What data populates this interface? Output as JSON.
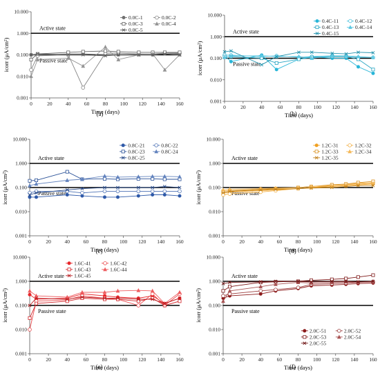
{
  "chart_data": [
    {
      "type": "line",
      "panel": "(a)",
      "xlabel": "Time (days)",
      "ylabel": "icorr (μA/cm²)",
      "xlim": [
        0,
        160
      ],
      "ylim": [
        0.001,
        10
      ],
      "yscale": "log",
      "xticks": [
        "0",
        "20",
        "40",
        "60",
        "80",
        "100",
        "120",
        "140",
        "160"
      ],
      "yticks": [
        "0.001",
        "0.010",
        "0.100",
        "1.000",
        "10.000"
      ],
      "annotations": [
        "Active state",
        "Passive state"
      ],
      "thresholds": [
        1.0,
        0.1
      ],
      "color": "#707070",
      "legend_position": "top-right",
      "x": [
        0,
        7,
        40,
        56,
        80,
        94,
        116,
        131,
        144,
        160
      ],
      "series": [
        {
          "name": "0.0C-1",
          "marker": "dot",
          "values": [
            0.1,
            0.1,
            0.11,
            0.11,
            0.1,
            0.1,
            0.11,
            0.1,
            0.12,
            0.11
          ]
        },
        {
          "name": "0.0C-2",
          "marker": "circle",
          "values": [
            0.02,
            0.09,
            0.1,
            0.003,
            0.12,
            0.12,
            0.11,
            0.11,
            0.12,
            0.12
          ]
        },
        {
          "name": "0.0C-3",
          "marker": "square",
          "values": [
            0.06,
            0.11,
            0.13,
            0.14,
            0.15,
            0.14,
            0.13,
            0.13,
            0.13,
            0.13
          ]
        },
        {
          "name": "0.0C-4",
          "marker": "triangle",
          "values": [
            0.01,
            0.06,
            0.07,
            0.03,
            0.23,
            0.06,
            0.1,
            0.11,
            0.02,
            0.1
          ]
        },
        {
          "name": "0.0C-5",
          "marker": "x",
          "values": [
            0.1,
            0.11,
            0.1,
            0.1,
            0.09,
            0.1,
            0.1,
            0.1,
            0.11,
            0.1
          ]
        }
      ]
    },
    {
      "type": "line",
      "panel": "(b)",
      "xlabel": "Time (days)",
      "ylabel": "icorr (μA/cm²)",
      "xlim": [
        0,
        160
      ],
      "ylim": [
        0.001,
        10
      ],
      "yscale": "log",
      "xticks": [
        "0",
        "20",
        "40",
        "60",
        "80",
        "100",
        "120",
        "140",
        "160"
      ],
      "yticks": [
        "0.001",
        "0.010",
        "0.100",
        "1.000",
        "10.000"
      ],
      "annotations": [
        "Active state",
        "Passive state"
      ],
      "thresholds": [
        1.0,
        0.1
      ],
      "color": "#29b6d8",
      "legend_position": "top-right",
      "x": [
        0,
        7,
        40,
        56,
        80,
        94,
        116,
        131,
        144,
        160
      ],
      "series": [
        {
          "name": "0.4C-11",
          "marker": "dot",
          "values": [
            0.13,
            0.07,
            0.14,
            0.03,
            0.09,
            0.12,
            0.1,
            0.1,
            0.04,
            0.02
          ]
        },
        {
          "name": "0.4C-12",
          "marker": "circle",
          "values": [
            0.14,
            0.14,
            0.12,
            0.13,
            0.11,
            0.12,
            0.13,
            0.12,
            0.11,
            0.11
          ]
        },
        {
          "name": "0.4C-13",
          "marker": "square",
          "values": [
            0.12,
            0.12,
            0.1,
            0.06,
            0.09,
            0.11,
            0.12,
            0.12,
            0.09,
            0.03
          ]
        },
        {
          "name": "0.4C-14",
          "marker": "triangle",
          "values": [
            0.11,
            0.13,
            0.13,
            0.12,
            0.12,
            0.1,
            0.13,
            0.13,
            0.12,
            0.11
          ]
        },
        {
          "name": "0.4C-15",
          "marker": "x",
          "values": [
            0.2,
            0.22,
            0.05,
            0.12,
            0.19,
            0.19,
            0.17,
            0.16,
            0.19,
            0.18
          ]
        }
      ]
    },
    {
      "type": "line",
      "panel": "(c)",
      "xlabel": "Time (days)",
      "ylabel": "icorr (μA/cm²)",
      "xlim": [
        0,
        160
      ],
      "ylim": [
        0.001,
        10
      ],
      "yscale": "log",
      "xticks": [
        "0",
        "20",
        "40",
        "60",
        "80",
        "100",
        "120",
        "140",
        "160"
      ],
      "yticks": [
        "0.001",
        "0.010",
        "0.100",
        "1.000",
        "10.000"
      ],
      "annotations": [
        "Active state",
        "Passive state"
      ],
      "thresholds": [
        1.0,
        0.1
      ],
      "color": "#2e59a8",
      "legend_position": "top-right",
      "x": [
        0,
        7,
        40,
        56,
        80,
        94,
        116,
        131,
        144,
        160
      ],
      "series": [
        {
          "name": "0.8C-21",
          "marker": "dot",
          "values": [
            0.04,
            0.04,
            0.05,
            0.045,
            0.04,
            0.04,
            0.045,
            0.05,
            0.05,
            0.045
          ]
        },
        {
          "name": "0.8C-22",
          "marker": "circle",
          "values": [
            0.06,
            0.07,
            0.07,
            0.06,
            0.07,
            0.07,
            0.07,
            0.07,
            0.07,
            0.07
          ]
        },
        {
          "name": "0.8C-23",
          "marker": "square",
          "values": [
            0.19,
            0.2,
            0.45,
            0.22,
            0.23,
            0.22,
            0.23,
            0.23,
            0.22,
            0.22
          ]
        },
        {
          "name": "0.8C-24",
          "marker": "triangle",
          "values": [
            0.12,
            0.14,
            0.2,
            0.22,
            0.3,
            0.27,
            0.28,
            0.29,
            0.29,
            0.28
          ]
        },
        {
          "name": "0.8C-25",
          "marker": "x",
          "values": [
            0.05,
            0.06,
            0.08,
            0.09,
            0.1,
            0.1,
            0.1,
            0.1,
            0.11,
            0.1
          ]
        }
      ]
    },
    {
      "type": "line",
      "panel": "(d)",
      "xlabel": "Time (days)",
      "ylabel": "icorr (μA/cm²)",
      "xlim": [
        0,
        160
      ],
      "ylim": [
        0.001,
        10
      ],
      "yscale": "log",
      "xticks": [
        "0",
        "20",
        "40",
        "60",
        "80",
        "100",
        "120",
        "140",
        "160"
      ],
      "yticks": [
        "0.001",
        "0.010",
        "0.100",
        "1.000",
        "10.000"
      ],
      "annotations": [
        "Active state",
        "Passive state"
      ],
      "thresholds": [
        1.0,
        0.1
      ],
      "color": "#f0a020",
      "legend_position": "top-right",
      "x": [
        0,
        7,
        40,
        56,
        80,
        94,
        116,
        131,
        144,
        160
      ],
      "series": [
        {
          "name": "1.2C-31",
          "marker": "dot",
          "values": [
            0.06,
            0.065,
            0.075,
            0.08,
            0.09,
            0.1,
            0.11,
            0.12,
            0.13,
            0.14
          ]
        },
        {
          "name": "1.2C-32",
          "marker": "circle",
          "values": [
            0.05,
            0.055,
            0.065,
            0.075,
            0.09,
            0.1,
            0.12,
            0.13,
            0.15,
            0.16
          ]
        },
        {
          "name": "1.2C-33",
          "marker": "square",
          "values": [
            0.07,
            0.075,
            0.085,
            0.09,
            0.1,
            0.11,
            0.13,
            0.14,
            0.16,
            0.18
          ]
        },
        {
          "name": "1.2C-34",
          "marker": "triangle",
          "values": [
            0.08,
            0.085,
            0.09,
            0.095,
            0.1,
            0.11,
            0.12,
            0.13,
            0.14,
            0.15
          ]
        },
        {
          "name": "1.2C-35",
          "marker": "x",
          "values": [
            0.06,
            0.07,
            0.08,
            0.085,
            0.09,
            0.095,
            0.1,
            0.11,
            0.12,
            0.12
          ]
        }
      ]
    },
    {
      "type": "line",
      "panel": "(e)",
      "xlabel": "Time (days)",
      "ylabel": "icorr (μA/cm²)",
      "xlim": [
        0,
        160
      ],
      "ylim": [
        0.001,
        10
      ],
      "yscale": "log",
      "xticks": [
        "0",
        "20",
        "40",
        "60",
        "80",
        "100",
        "120",
        "140",
        "160"
      ],
      "yticks": [
        "0.001",
        "0.010",
        "0.100",
        "1.000",
        "10.000"
      ],
      "annotations": [
        "Active state",
        "Passive state"
      ],
      "thresholds": [
        1.0,
        0.1
      ],
      "color": "#e8262a",
      "legend_position": "top-left",
      "x": [
        0,
        7,
        40,
        56,
        80,
        94,
        116,
        131,
        144,
        160
      ],
      "series": [
        {
          "name": "1.6C-41",
          "marker": "dot",
          "values": [
            0.28,
            0.18,
            0.2,
            0.3,
            0.25,
            0.22,
            0.2,
            0.25,
            0.12,
            0.2
          ]
        },
        {
          "name": "1.6C-42",
          "marker": "circle",
          "values": [
            0.01,
            0.15,
            0.17,
            0.25,
            0.2,
            0.18,
            0.1,
            0.3,
            0.1,
            0.3
          ]
        },
        {
          "name": "1.6C-43",
          "marker": "square",
          "values": [
            0.03,
            0.12,
            0.15,
            0.2,
            0.18,
            0.18,
            0.15,
            0.2,
            0.1,
            0.15
          ]
        },
        {
          "name": "1.6C-44",
          "marker": "triangle",
          "values": [
            0.4,
            0.25,
            0.22,
            0.35,
            0.35,
            0.4,
            0.42,
            0.4,
            0.12,
            0.35
          ]
        },
        {
          "name": "1.6C-45",
          "marker": "x",
          "values": [
            0.1,
            0.2,
            0.18,
            0.22,
            0.2,
            0.2,
            0.18,
            0.18,
            0.12,
            0.2
          ]
        }
      ]
    },
    {
      "type": "line",
      "panel": "(f)",
      "xlabel": "Time (days)",
      "ylabel": "icorr (μA/cm²)",
      "xlim": [
        0,
        160
      ],
      "ylim": [
        0.001,
        10
      ],
      "yscale": "log",
      "xticks": [
        "0",
        "20",
        "40",
        "60",
        "80",
        "100",
        "120",
        "140",
        "160"
      ],
      "yticks": [
        "0.001",
        "0.010",
        "0.100",
        "1.000",
        "10.000"
      ],
      "annotations": [
        "Active state",
        "Passive state"
      ],
      "thresholds": [
        1.0,
        0.1
      ],
      "color": "#8b1a1a",
      "legend_position": "bottom-right",
      "x": [
        0,
        7,
        40,
        56,
        80,
        94,
        116,
        131,
        144,
        160
      ],
      "series": [
        {
          "name": "2.0C-51",
          "marker": "dot",
          "values": [
            0.2,
            0.25,
            0.3,
            0.4,
            0.5,
            0.65,
            0.7,
            0.75,
            0.8,
            0.85
          ]
        },
        {
          "name": "2.0C-52",
          "marker": "circle",
          "values": [
            0.25,
            0.3,
            0.4,
            0.45,
            0.55,
            0.75,
            0.8,
            0.85,
            0.9,
            0.95
          ]
        },
        {
          "name": "2.0C-53",
          "marker": "square",
          "values": [
            0.4,
            0.6,
            0.9,
            0.95,
            1.0,
            1.1,
            1.2,
            1.3,
            1.5,
            1.8
          ]
        },
        {
          "name": "2.0C-54",
          "marker": "triangle",
          "values": [
            0.15,
            0.4,
            0.6,
            0.75,
            0.9,
            0.85,
            0.9,
            0.95,
            0.9,
            1.0
          ]
        },
        {
          "name": "2.0C-55",
          "marker": "x",
          "values": [
            0.8,
            0.9,
            0.95,
            1.0,
            1.0,
            0.95,
            1.0,
            1.0,
            0.95,
            1.0
          ]
        }
      ]
    }
  ]
}
